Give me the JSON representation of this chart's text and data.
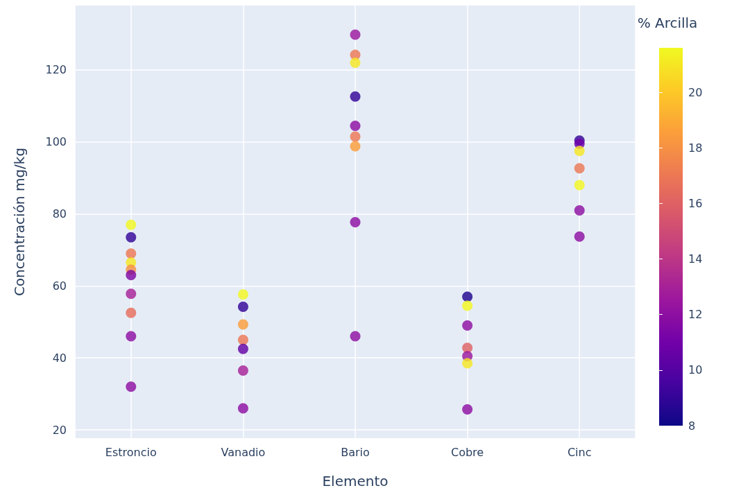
{
  "chart_data": {
    "type": "scatter",
    "xlabel": "Elemento",
    "ylabel": "Concentración mg/kg",
    "clabel": "% Arcilla",
    "categories": [
      "Estroncio",
      "Vanadio",
      "Bario",
      "Cobre",
      "Cinc"
    ],
    "series": [
      {
        "x": [
          "Estroncio",
          "Estroncio",
          "Estroncio",
          "Estroncio",
          "Estroncio",
          "Estroncio",
          "Estroncio",
          "Estroncio",
          "Estroncio",
          "Estroncio",
          "Vanadio",
          "Vanadio",
          "Vanadio",
          "Vanadio",
          "Vanadio",
          "Vanadio",
          "Vanadio",
          "Bario",
          "Bario",
          "Bario",
          "Bario",
          "Bario",
          "Bario",
          "Bario",
          "Bario",
          "Bario",
          "Cobre",
          "Cobre",
          "Cobre",
          "Cobre",
          "Cobre",
          "Cobre",
          "Cobre",
          "Cinc",
          "Cinc",
          "Cinc",
          "Cinc",
          "Cinc",
          "Cinc",
          "Cinc"
        ],
        "values": [
          77,
          73.5,
          69,
          66.5,
          64.5,
          63,
          57.8,
          52.5,
          46,
          32,
          57.6,
          54.2,
          49.3,
          45,
          42.5,
          36.5,
          26,
          129.8,
          124.2,
          122,
          112.6,
          104.5,
          101.5,
          98.8,
          77.7,
          46,
          57,
          54.5,
          49,
          42.8,
          40.5,
          38.5,
          25.7,
          100.4,
          99.5,
          97.5,
          92.7,
          88,
          81,
          73.7
        ],
        "cvalues": [
          21.5,
          9,
          17,
          21,
          18,
          11.5,
          13,
          16.5,
          12,
          12,
          21.5,
          9,
          18.5,
          17,
          10.5,
          13,
          12,
          12.5,
          17,
          21,
          9,
          12,
          17,
          18.5,
          12,
          12,
          8.5,
          21.5,
          12,
          16,
          12.5,
          21,
          12,
          9,
          11,
          21,
          17,
          21.5,
          12,
          12
        ]
      }
    ],
    "clim": [
      8,
      21.6
    ],
    "cticks": [
      8,
      10,
      12,
      14,
      16,
      18,
      20
    ],
    "ylim": [
      17.7,
      137.9
    ],
    "yticks": [
      20,
      40,
      60,
      80,
      100,
      120
    ],
    "grid": true,
    "marker": "circle"
  }
}
